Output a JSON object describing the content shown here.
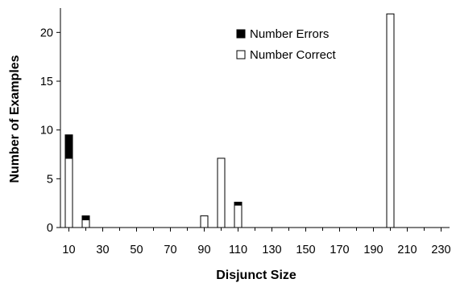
{
  "chart_data": {
    "type": "bar",
    "stacked": true,
    "xlabel": "Disjunct Size",
    "ylabel": "Number of Examples",
    "xlim": [
      5,
      235
    ],
    "ylim": [
      0,
      22.5
    ],
    "x_ticks": [
      10,
      30,
      50,
      70,
      90,
      110,
      130,
      150,
      170,
      190,
      210,
      230
    ],
    "y_ticks": [
      0,
      5,
      10,
      15,
      20
    ],
    "x": [
      10,
      20,
      90,
      100,
      110,
      200
    ],
    "series": [
      {
        "name": "Number Correct",
        "values": [
          7.1,
          0.8,
          1.2,
          7.1,
          2.3,
          21.9
        ],
        "color": "#ffffff"
      },
      {
        "name": "Number Errors",
        "values": [
          2.4,
          0.4,
          0,
          0,
          0.3,
          0
        ],
        "color": "#000000"
      }
    ],
    "legend": {
      "position": "top-right",
      "order": [
        "Number Errors",
        "Number Correct"
      ]
    },
    "grid": false
  }
}
